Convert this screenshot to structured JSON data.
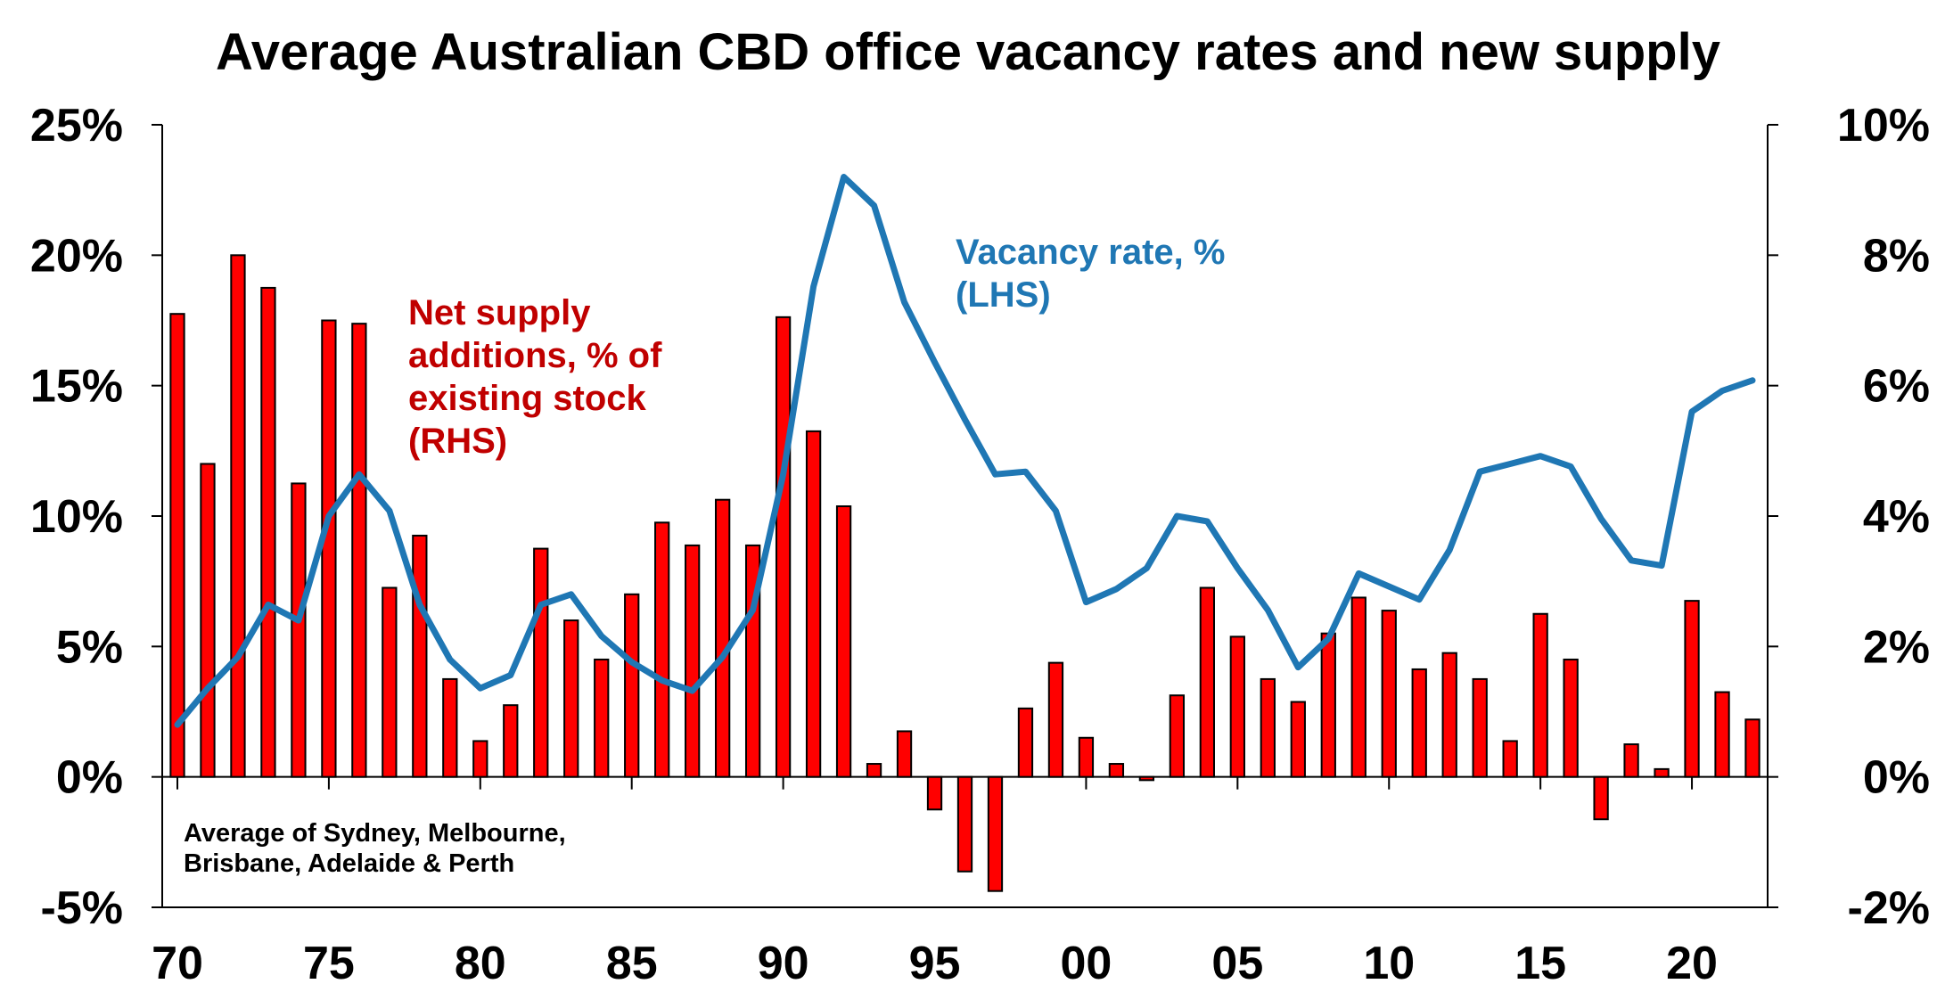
{
  "chart_data": {
    "type": "bar+line",
    "title": "Average Australian CBD office vacancy rates and new supply",
    "left_axis": {
      "ticks": [
        -5,
        0,
        5,
        10,
        15,
        20,
        25
      ],
      "tick_labels": [
        "-5%",
        "0%",
        "5%",
        "10%",
        "15%",
        "20%",
        "25%"
      ],
      "range": [
        -5,
        25
      ]
    },
    "right_axis": {
      "ticks": [
        -2,
        0,
        2,
        4,
        6,
        8,
        10
      ],
      "tick_labels": [
        "-2%",
        "0%",
        "2%",
        "4%",
        "6%",
        "8%",
        "10%"
      ],
      "range": [
        -2,
        10
      ]
    },
    "x_axis": {
      "tick_years": [
        1970,
        1975,
        1980,
        1985,
        1990,
        1995,
        2000,
        2005,
        2010,
        2015,
        2020
      ],
      "tick_labels": [
        "70",
        "75",
        "80",
        "85",
        "90",
        "95",
        "00",
        "05",
        "10",
        "15",
        "20"
      ],
      "range": [
        1969.5,
        2022.5
      ]
    },
    "series": [
      {
        "name": "Net supply additions, % of existing stock (RHS)",
        "label_lines": [
          "Net supply",
          "additions, % of",
          "existing  stock",
          "(RHS)"
        ],
        "kind": "bar",
        "axis": "right",
        "color": "#ff0000",
        "x": [
          1970,
          1971,
          1972,
          1973,
          1974,
          1975,
          1976,
          1977,
          1978,
          1979,
          1980,
          1981,
          1982,
          1983,
          1984,
          1985,
          1986,
          1987,
          1988,
          1989,
          1990,
          1991,
          1992,
          1993,
          1994,
          1995,
          1996,
          1997,
          1998,
          1999,
          2000,
          2001,
          2002,
          2003,
          2004,
          2005,
          2006,
          2007,
          2008,
          2009,
          2010,
          2011,
          2012,
          2013,
          2014,
          2015,
          2016,
          2017,
          2018,
          2019,
          2020,
          2021,
          2022
        ],
        "values": [
          7.1,
          4.8,
          8.0,
          7.5,
          4.5,
          7.0,
          6.95,
          2.9,
          3.7,
          1.5,
          0.55,
          1.1,
          3.5,
          2.4,
          1.8,
          2.8,
          3.9,
          3.55,
          4.25,
          3.55,
          7.05,
          5.3,
          4.15,
          0.2,
          0.7,
          -0.5,
          -1.45,
          -1.75,
          1.05,
          1.75,
          0.6,
          0.2,
          -0.05,
          1.25,
          2.9,
          2.15,
          1.5,
          1.15,
          2.2,
          2.75,
          2.55,
          1.65,
          1.9,
          1.5,
          0.55,
          2.5,
          1.8,
          -0.65,
          0.5,
          0.12,
          2.7,
          1.3,
          0.88
        ]
      },
      {
        "name": "Vacancy rate, % (LHS)",
        "label_lines": [
          "Vacancy rate, %",
          "(LHS)"
        ],
        "kind": "line",
        "axis": "left",
        "color": "#1f77b4",
        "x": [
          1970,
          1971,
          1972,
          1973,
          1974,
          1975,
          1976,
          1977,
          1978,
          1979,
          1980,
          1981,
          1982,
          1983,
          1984,
          1985,
          1986,
          1987,
          1988,
          1989,
          1990,
          1991,
          1992,
          1993,
          1994,
          1995,
          1996,
          1997,
          1998,
          1999,
          2000,
          2001,
          2002,
          2003,
          2004,
          2005,
          2006,
          2007,
          2008,
          2009,
          2010,
          2011,
          2012,
          2013,
          2014,
          2015,
          2016,
          2017,
          2018,
          2019,
          2020,
          2021,
          2022
        ],
        "values": [
          2.0,
          3.4,
          4.6,
          6.6,
          6.0,
          10.0,
          11.6,
          10.2,
          6.6,
          4.5,
          3.4,
          3.9,
          6.6,
          7.0,
          5.4,
          4.4,
          3.7,
          3.3,
          4.6,
          6.4,
          11.6,
          18.8,
          23.0,
          21.9,
          18.2,
          15.9,
          13.7,
          11.6,
          11.7,
          10.2,
          6.7,
          7.2,
          8.0,
          10.0,
          9.8,
          8.0,
          6.4,
          4.2,
          5.3,
          7.8,
          7.3,
          6.8,
          8.7,
          11.7,
          12.0,
          12.3,
          11.9,
          9.9,
          8.3,
          8.1,
          14.0,
          14.8,
          15.2
        ]
      }
    ],
    "annotations": {
      "note_lines": [
        "Average of Sydney, Melbourne,",
        "Brisbane, Adelaide & Perth"
      ]
    }
  }
}
